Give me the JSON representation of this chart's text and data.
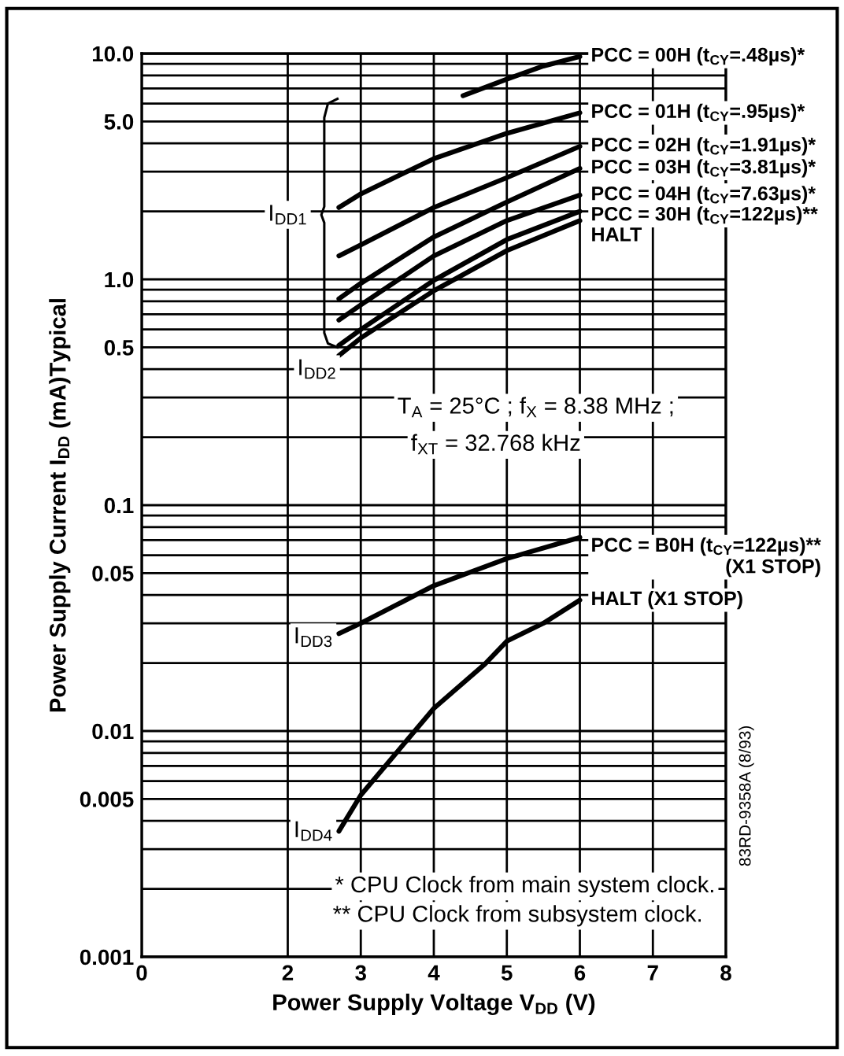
{
  "chart_data": {
    "type": "line",
    "xlabel": "Power Supply Voltage V$_{DD}$ (V)",
    "ylabel": "Power Supply Current I$_{DD}$ (mA)Typical",
    "log": "y",
    "xlim": [
      0,
      8
    ],
    "xticks": [
      0,
      2,
      3,
      4,
      5,
      6,
      7,
      8
    ],
    "ylim": [
      0.001,
      10
    ],
    "yticks": [
      {
        "value": 0.001,
        "label": "0.001"
      },
      {
        "value": 0.005,
        "label": "0.005"
      },
      {
        "value": 0.01,
        "label": "0.01"
      },
      {
        "value": 0.05,
        "label": "0.05"
      },
      {
        "value": 0.1,
        "label": "0.1"
      },
      {
        "value": 0.5,
        "label": "0.5"
      },
      {
        "value": 1,
        "label": "1.0"
      },
      {
        "value": 5,
        "label": "5.0"
      },
      {
        "value": 10,
        "label": "10.0"
      }
    ],
    "grid": true,
    "legend": false,
    "series": [
      {
        "name": "PCC = 00H (t$_{CY}$=.48µs)*",
        "color": "#000000",
        "x": [
          4.4,
          5,
          5.5,
          6
        ],
        "values": [
          6.5,
          7.7,
          8.8,
          9.7
        ]
      },
      {
        "name": "PCC = 01H (t$_{CY}$=.95µs)*",
        "color": "#000000",
        "x": [
          2.7,
          3,
          4,
          5,
          6
        ],
        "values": [
          2.08,
          2.39,
          3.42,
          4.43,
          5.46
        ]
      },
      {
        "name": "PCC = 02H (t$_{CY}$=1.91µs)*",
        "color": "#000000",
        "x": [
          2.7,
          3,
          4,
          5,
          6
        ],
        "values": [
          1.27,
          1.42,
          2.08,
          2.82,
          3.88
        ]
      },
      {
        "name": "PCC = 03H (t$_{CY}$=3.81µs)*",
        "color": "#000000",
        "x": [
          2.7,
          3,
          4,
          5,
          6
        ],
        "values": [
          0.82,
          0.96,
          1.54,
          2.2,
          3.1
        ]
      },
      {
        "name": "PCC = 04H (t$_{CY}$=7.63µs)*",
        "color": "#000000",
        "x": [
          2.7,
          3,
          4,
          5,
          6
        ],
        "values": [
          0.66,
          0.77,
          1.27,
          1.82,
          2.36
        ]
      },
      {
        "name": "PCC = 30H (t$_{CY}$=122µs)**",
        "color": "#000000",
        "x": [
          2.7,
          3,
          4,
          5,
          6
        ],
        "values": [
          0.51,
          0.6,
          0.99,
          1.5,
          2.0
        ]
      },
      {
        "name": "HALT",
        "color": "#000000",
        "x": [
          2.7,
          3,
          4,
          5,
          6
        ],
        "values": [
          0.46,
          0.55,
          0.89,
          1.34,
          1.82
        ]
      },
      {
        "name": "PCC = B0H (t$_{CY}$=122µs)**\n(X1 STOP)",
        "color": "#000000",
        "x": [
          2.7,
          3,
          4,
          5,
          6
        ],
        "values": [
          0.027,
          0.03,
          0.044,
          0.058,
          0.072
        ]
      },
      {
        "name": "HALT (X1 STOP)",
        "color": "#000000",
        "x": [
          2.7,
          3,
          4,
          4.7,
          5,
          5.5,
          6
        ],
        "values": [
          0.0036,
          0.0052,
          0.0126,
          0.0198,
          0.025,
          0.03,
          0.038
        ]
      }
    ],
    "annotations": [
      {
        "text": "I$_{DD1}$",
        "x": 2.0,
        "y": 1.93
      },
      {
        "text": "I$_{DD2}$",
        "x": 2.4,
        "y": 0.4
      },
      {
        "text": "I$_{DD3}$",
        "x": 2.35,
        "y": 0.026
      },
      {
        "text": "I$_{DD4}$",
        "x": 2.35,
        "y": 0.0036
      },
      "T$_{A}$ = 25°C ; f$_{X}$ = 8.38 MHz ;",
      "f$_{XT}$ = 32.768 kHz",
      "* CPU Clock from main system clock.",
      "** CPU Clock from subsystem clock.",
      "83RD-9358A (8/93)"
    ]
  }
}
